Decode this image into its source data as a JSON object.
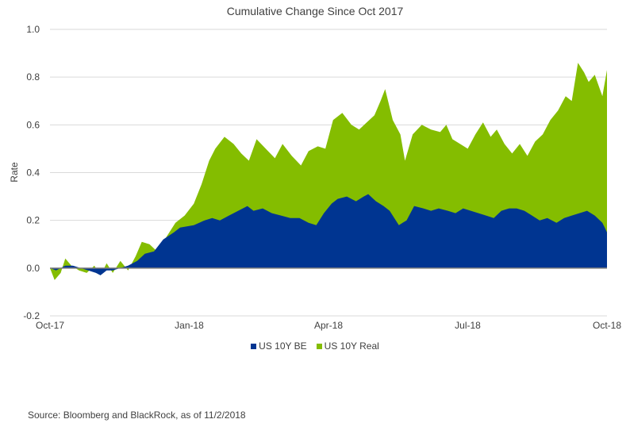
{
  "chart_data": {
    "type": "area",
    "title": "Cumulative Change Since Oct 2017",
    "ylabel": "Rate",
    "xlabel": "",
    "ylim": [
      -0.2,
      1.0
    ],
    "yticks": [
      -0.2,
      0.0,
      0.2,
      0.4,
      0.6,
      0.8,
      1.0
    ],
    "yticks_labels": [
      "-0.2",
      "0.0",
      "0.2",
      "0.4",
      "0.6",
      "0.8",
      "1.0"
    ],
    "xlim": [
      "2017-10-02",
      "2018-10-01"
    ],
    "xticks": [
      "2017-10-02",
      "2018-01-01",
      "2018-04-02",
      "2018-07-02",
      "2018-10-01"
    ],
    "xticks_labels": [
      "Oct-17",
      "Jan-18",
      "Apr-18",
      "Jul-18",
      "Oct-18"
    ],
    "grid": "horizontal",
    "stacked": true,
    "legend_position": "bottom",
    "series": [
      {
        "name": "US 10Y BE",
        "color": "#003591",
        "points": [
          [
            "2017-10-02",
            0.0
          ],
          [
            "2017-10-06",
            -0.01
          ],
          [
            "2017-10-12",
            0.01
          ],
          [
            "2017-10-17",
            0.01
          ],
          [
            "2017-10-22",
            0.0
          ],
          [
            "2017-10-27",
            -0.01
          ],
          [
            "2017-11-01",
            -0.02
          ],
          [
            "2017-11-04",
            -0.03
          ],
          [
            "2017-11-08",
            -0.01
          ],
          [
            "2017-11-12",
            -0.01
          ],
          [
            "2017-11-17",
            0.0
          ],
          [
            "2017-11-22",
            0.01
          ],
          [
            "2017-11-28",
            0.03
          ],
          [
            "2017-12-03",
            0.06
          ],
          [
            "2017-12-09",
            0.07
          ],
          [
            "2017-12-15",
            0.12
          ],
          [
            "2017-12-22",
            0.15
          ],
          [
            "2017-12-26",
            0.17
          ],
          [
            "2018-01-04",
            0.18
          ],
          [
            "2018-01-11",
            0.2
          ],
          [
            "2018-01-16",
            0.21
          ],
          [
            "2018-01-21",
            0.2
          ],
          [
            "2018-01-27",
            0.22
          ],
          [
            "2018-02-02",
            0.24
          ],
          [
            "2018-02-08",
            0.26
          ],
          [
            "2018-02-12",
            0.24
          ],
          [
            "2018-02-18",
            0.25
          ],
          [
            "2018-02-24",
            0.23
          ],
          [
            "2018-03-02",
            0.22
          ],
          [
            "2018-03-08",
            0.21
          ],
          [
            "2018-03-14",
            0.21
          ],
          [
            "2018-03-20",
            0.19
          ],
          [
            "2018-03-25",
            0.18
          ],
          [
            "2018-03-30",
            0.23
          ],
          [
            "2018-04-04",
            0.27
          ],
          [
            "2018-04-08",
            0.29
          ],
          [
            "2018-04-14",
            0.3
          ],
          [
            "2018-04-20",
            0.28
          ],
          [
            "2018-04-25",
            0.3
          ],
          [
            "2018-04-28",
            0.31
          ],
          [
            "2018-05-03",
            0.28
          ],
          [
            "2018-05-08",
            0.26
          ],
          [
            "2018-05-12",
            0.24
          ],
          [
            "2018-05-18",
            0.18
          ],
          [
            "2018-05-23",
            0.2
          ],
          [
            "2018-05-28",
            0.26
          ],
          [
            "2018-06-03",
            0.25
          ],
          [
            "2018-06-08",
            0.24
          ],
          [
            "2018-06-13",
            0.25
          ],
          [
            "2018-06-19",
            0.24
          ],
          [
            "2018-06-24",
            0.23
          ],
          [
            "2018-06-29",
            0.25
          ],
          [
            "2018-07-04",
            0.24
          ],
          [
            "2018-07-09",
            0.23
          ],
          [
            "2018-07-14",
            0.22
          ],
          [
            "2018-07-19",
            0.21
          ],
          [
            "2018-07-24",
            0.24
          ],
          [
            "2018-07-29",
            0.25
          ],
          [
            "2018-08-03",
            0.25
          ],
          [
            "2018-08-08",
            0.24
          ],
          [
            "2018-08-13",
            0.22
          ],
          [
            "2018-08-18",
            0.2
          ],
          [
            "2018-08-23",
            0.21
          ],
          [
            "2018-08-29",
            0.19
          ],
          [
            "2018-09-03",
            0.21
          ],
          [
            "2018-09-08",
            0.22
          ],
          [
            "2018-09-13",
            0.23
          ],
          [
            "2018-09-18",
            0.24
          ],
          [
            "2018-09-23",
            0.22
          ],
          [
            "2018-09-28",
            0.19
          ],
          [
            "2018-10-01",
            0.15
          ]
        ]
      },
      {
        "name": "US 10Y Real",
        "color": "#84BD00",
        "points": [
          [
            "2017-10-02",
            0.0
          ],
          [
            "2017-10-05",
            -0.05
          ],
          [
            "2017-10-09",
            -0.02
          ],
          [
            "2017-10-12",
            0.04
          ],
          [
            "2017-10-16",
            0.01
          ],
          [
            "2017-10-21",
            -0.01
          ],
          [
            "2017-10-26",
            -0.02
          ],
          [
            "2017-10-31",
            0.01
          ],
          [
            "2017-11-04",
            -0.03
          ],
          [
            "2017-11-08",
            0.02
          ],
          [
            "2017-11-12",
            -0.02
          ],
          [
            "2017-11-17",
            0.03
          ],
          [
            "2017-11-22",
            -0.01
          ],
          [
            "2017-11-27",
            0.05
          ],
          [
            "2017-12-01",
            0.11
          ],
          [
            "2017-12-06",
            0.1
          ],
          [
            "2017-12-11",
            0.07
          ],
          [
            "2017-12-17",
            0.13
          ],
          [
            "2017-12-23",
            0.19
          ],
          [
            "2017-12-29",
            0.22
          ],
          [
            "2018-01-04",
            0.27
          ],
          [
            "2018-01-09",
            0.35
          ],
          [
            "2018-01-14",
            0.45
          ],
          [
            "2018-01-18",
            0.5
          ],
          [
            "2018-01-24",
            0.55
          ],
          [
            "2018-01-30",
            0.52
          ],
          [
            "2018-02-04",
            0.48
          ],
          [
            "2018-02-09",
            0.45
          ],
          [
            "2018-02-14",
            0.54
          ],
          [
            "2018-02-20",
            0.5
          ],
          [
            "2018-02-26",
            0.46
          ],
          [
            "2018-03-03",
            0.52
          ],
          [
            "2018-03-09",
            0.47
          ],
          [
            "2018-03-15",
            0.43
          ],
          [
            "2018-03-20",
            0.49
          ],
          [
            "2018-03-26",
            0.51
          ],
          [
            "2018-03-31",
            0.5
          ],
          [
            "2018-04-05",
            0.62
          ],
          [
            "2018-04-11",
            0.65
          ],
          [
            "2018-04-17",
            0.6
          ],
          [
            "2018-04-22",
            0.58
          ],
          [
            "2018-04-27",
            0.61
          ],
          [
            "2018-05-02",
            0.64
          ],
          [
            "2018-05-06",
            0.7
          ],
          [
            "2018-05-09",
            0.75
          ],
          [
            "2018-05-14",
            0.62
          ],
          [
            "2018-05-19",
            0.56
          ],
          [
            "2018-05-22",
            0.45
          ],
          [
            "2018-05-27",
            0.56
          ],
          [
            "2018-06-02",
            0.6
          ],
          [
            "2018-06-08",
            0.58
          ],
          [
            "2018-06-14",
            0.57
          ],
          [
            "2018-06-18",
            0.6
          ],
          [
            "2018-06-22",
            0.54
          ],
          [
            "2018-06-27",
            0.52
          ],
          [
            "2018-07-02",
            0.5
          ],
          [
            "2018-07-07",
            0.56
          ],
          [
            "2018-07-12",
            0.61
          ],
          [
            "2018-07-17",
            0.55
          ],
          [
            "2018-07-21",
            0.58
          ],
          [
            "2018-07-26",
            0.52
          ],
          [
            "2018-07-31",
            0.48
          ],
          [
            "2018-08-05",
            0.52
          ],
          [
            "2018-08-10",
            0.47
          ],
          [
            "2018-08-15",
            0.53
          ],
          [
            "2018-08-20",
            0.56
          ],
          [
            "2018-08-25",
            0.62
          ],
          [
            "2018-08-30",
            0.66
          ],
          [
            "2018-09-04",
            0.72
          ],
          [
            "2018-09-08",
            0.7
          ],
          [
            "2018-09-12",
            0.86
          ],
          [
            "2018-09-16",
            0.82
          ],
          [
            "2018-09-19",
            0.78
          ],
          [
            "2018-09-23",
            0.81
          ],
          [
            "2018-09-28",
            0.72
          ],
          [
            "2018-10-01",
            0.83
          ]
        ]
      }
    ]
  },
  "source_note": "Source: Bloomberg and BlackRock, as of 11/2/2018"
}
